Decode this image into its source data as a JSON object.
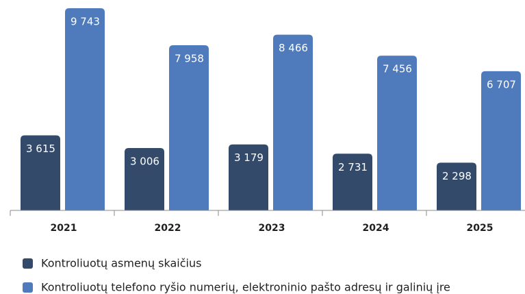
{
  "chart_data": {
    "type": "bar",
    "categories": [
      "2021",
      "2022",
      "2023",
      "2024",
      "2025"
    ],
    "series": [
      {
        "name": "Kontroliuotų asmenų skaičius",
        "color": "#334a6b",
        "values": [
          3615,
          3006,
          3179,
          2731,
          2298
        ],
        "value_labels": [
          "3 615",
          "3 006",
          "3 179",
          "2 731",
          "2 298"
        ]
      },
      {
        "name": "Kontroliuotų telefono ryšio numerių, elektroninio pašto adresų ir galinių įre",
        "color": "#4f7bbd",
        "values": [
          9743,
          7958,
          8466,
          7456,
          6707
        ],
        "value_labels": [
          "9 743",
          "7 958",
          "8 466",
          "7 456",
          "6 707"
        ]
      }
    ]
  }
}
